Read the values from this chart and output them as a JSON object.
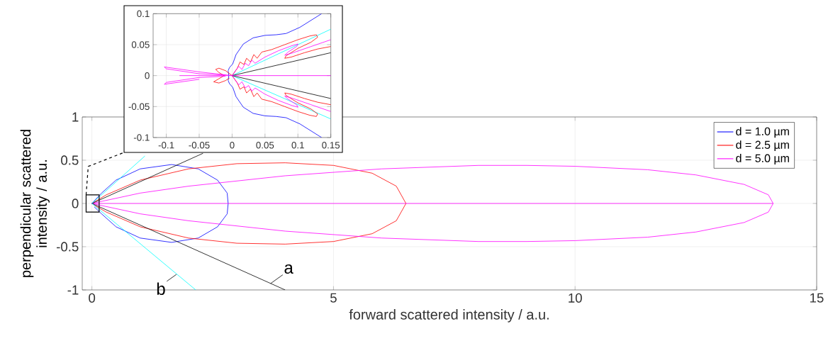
{
  "chart_data": [
    {
      "type": "line",
      "xlabel": "forward scattered intensity / a.u.",
      "ylabel": "perpendicular scattered intensity / a.u.",
      "xlim": [
        -0.2,
        15
      ],
      "ylim": [
        -1,
        1
      ],
      "xticks": [
        0,
        5,
        10,
        15
      ],
      "yticks": [
        -1,
        -0.5,
        0,
        0.5,
        1
      ],
      "grid": true,
      "legend": "top right",
      "series": [
        {
          "name": "d = 1.0 µm",
          "color": "#0000ff",
          "x": [
            0,
            0.2,
            0.5,
            1.0,
            1.65,
            2.2,
            2.6,
            2.8,
            2.82,
            2.8,
            2.6,
            2.2,
            1.65,
            1.0,
            0.5,
            0.2,
            0.05
          ],
          "values": [
            0,
            0.12,
            0.27,
            0.4,
            0.45,
            0.4,
            0.27,
            0.12,
            0,
            -0.12,
            -0.27,
            -0.4,
            -0.45,
            -0.4,
            -0.27,
            -0.12,
            -0.04
          ]
        },
        {
          "name": "d = 2.5 µm",
          "color": "#ff0000",
          "x": [
            0,
            0.3,
            1,
            2,
            3,
            4,
            5,
            5.8,
            6.3,
            6.5,
            6.3,
            5.8,
            5,
            4,
            3,
            2,
            1,
            0.3,
            0.05
          ],
          "values": [
            0,
            0.1,
            0.27,
            0.4,
            0.46,
            0.47,
            0.44,
            0.35,
            0.2,
            0,
            -0.2,
            -0.35,
            -0.44,
            -0.47,
            -0.46,
            -0.4,
            -0.27,
            -0.1,
            -0.02
          ]
        },
        {
          "name": "d = 5.0 µm",
          "color": "#ff00ff",
          "x": [
            0,
            1,
            2,
            4,
            6,
            8,
            9,
            10,
            11.5,
            12.5,
            13.5,
            14,
            14.1,
            14,
            13.5,
            12.5,
            11.5,
            10,
            9,
            8,
            6,
            4,
            2,
            1,
            0,
            14.1
          ],
          "values": [
            0,
            0.12,
            0.2,
            0.32,
            0.4,
            0.44,
            0.44,
            0.43,
            0.39,
            0.33,
            0.22,
            0.1,
            0,
            -0.1,
            -0.22,
            -0.33,
            -0.39,
            -0.43,
            -0.44,
            -0.44,
            -0.4,
            -0.32,
            -0.2,
            -0.12,
            0,
            0
          ]
        },
        {
          "color": "#000000",
          "x": [
            2.3,
            0,
            4
          ],
          "values": [
            0.58,
            0,
            -1
          ]
        },
        {
          "color": "#00ffff",
          "x": [
            1.1,
            0,
            2.15
          ],
          "values": [
            0.55,
            0,
            -1
          ]
        }
      ],
      "annotations": [
        {
          "text": "a",
          "x": 3.7,
          "y": -0.925
        },
        {
          "text": "b",
          "x": 1.75,
          "y": -0.82
        }
      ]
    },
    {
      "type": "line",
      "xlim": [
        -0.12,
        0.15
      ],
      "ylim": [
        -0.1,
        0.1
      ],
      "xticks": [
        -0.1,
        -0.05,
        0,
        0.05,
        0.1,
        0.15
      ],
      "yticks": [
        -0.1,
        -0.05,
        0,
        0.05,
        0.1
      ],
      "grid": true,
      "series": [
        {
          "color": "#0000ff",
          "x": [
            0.136,
            0.103,
            0.082,
            0.067,
            0.05,
            0.032,
            0.017,
            0.006,
            0.001,
            -0.004,
            -0.006,
            -0.005,
            -0.006,
            -0.004,
            0.001,
            0.006,
            0.017,
            0.032,
            0.05,
            0.067,
            0.082,
            0.103,
            0.136
          ],
          "values": [
            0.1,
            0.078,
            0.068,
            0.066,
            0.065,
            0.061,
            0.051,
            0.034,
            0.019,
            0.013,
            0.008,
            0,
            -0.008,
            -0.013,
            -0.019,
            -0.034,
            -0.051,
            -0.061,
            -0.065,
            -0.066,
            -0.068,
            -0.078,
            -0.1
          ]
        },
        {
          "color": "#00ffff",
          "x": [
            0.15,
            0,
            0.15
          ],
          "values": [
            0.075,
            0,
            -0.07
          ]
        },
        {
          "color": "#000000",
          "x": [
            0.15,
            0,
            0.15
          ],
          "values": [
            0.037,
            0,
            -0.037
          ]
        },
        {
          "color": "#ff0000",
          "x": [
            0,
            0.008,
            0.012,
            0.018,
            0.022,
            0.028,
            0.033,
            0.038,
            0.045,
            0.06,
            0.08,
            0.1,
            0.118,
            0.128,
            0.13,
            0.12,
            0.1,
            0.082,
            0.08,
            0.09,
            0.11,
            0.13,
            0.15,
            null,
            0,
            0.008,
            0.012,
            0.018,
            0.022,
            0.028,
            0.033,
            0.038,
            0.045,
            0.06,
            0.08,
            0.1,
            0.118,
            0.128,
            0.13,
            0.12,
            0.1,
            0.082,
            0.08,
            0.09,
            0.11,
            0.13,
            0.15,
            null,
            0,
            -0.01,
            -0.02,
            -0.025,
            -0.02,
            -0.012,
            -0.02,
            -0.028,
            -0.02,
            -0.01,
            -0.004
          ],
          "values": [
            0,
            0.012,
            0.022,
            0.018,
            0.028,
            0.022,
            0.034,
            0.028,
            0.038,
            0.042,
            0.05,
            0.058,
            0.064,
            0.066,
            0.062,
            0.054,
            0.044,
            0.032,
            0.028,
            0.03,
            0.037,
            0.043,
            0.047,
            null,
            0,
            -0.012,
            -0.022,
            -0.018,
            -0.028,
            -0.022,
            -0.034,
            -0.028,
            -0.038,
            -0.042,
            -0.05,
            -0.058,
            -0.064,
            -0.066,
            -0.062,
            -0.054,
            -0.044,
            -0.032,
            -0.028,
            -0.03,
            -0.037,
            -0.043,
            -0.047,
            null,
            0,
            0.008,
            0.012,
            0.01,
            0.005,
            0,
            -0.005,
            -0.01,
            -0.012,
            -0.008,
            -0.004
          ]
        },
        {
          "color": "#ff00ff",
          "x": [
            0,
            -0.05,
            -0.103,
            -0.1,
            -0.05,
            -0.01,
            null,
            -0.05,
            -0.103,
            -0.1,
            -0.05,
            -0.01,
            null,
            -0.08,
            0.15,
            null,
            0,
            0.01,
            0.015,
            0.02,
            0.025,
            0.03,
            0.035,
            0.05,
            0.07,
            0.09,
            0.1,
            0.098,
            0.085,
            0.08,
            0.09,
            0.12,
            0.15,
            null,
            0,
            0.01,
            0.015,
            0.02,
            0.025,
            0.03,
            0.035,
            0.05,
            0.07,
            0.09,
            0.1,
            0.098,
            0.085,
            0.08,
            0.09,
            0.12,
            0.15
          ],
          "values": [
            0,
            0.006,
            0.014,
            0.011,
            0.003,
            0.001,
            null,
            -0.006,
            -0.014,
            -0.011,
            -0.003,
            -0.001,
            null,
            0,
            0,
            null,
            0,
            0.015,
            0.01,
            0.02,
            0.016,
            0.025,
            0.02,
            0.03,
            0.04,
            0.048,
            0.051,
            0.047,
            0.038,
            0.033,
            0.036,
            0.047,
            0.058,
            null,
            0,
            -0.015,
            -0.01,
            -0.02,
            -0.016,
            -0.025,
            -0.02,
            -0.03,
            -0.04,
            -0.048,
            -0.051,
            -0.047,
            -0.038,
            -0.033,
            -0.036,
            -0.047,
            -0.058
          ]
        }
      ]
    }
  ]
}
